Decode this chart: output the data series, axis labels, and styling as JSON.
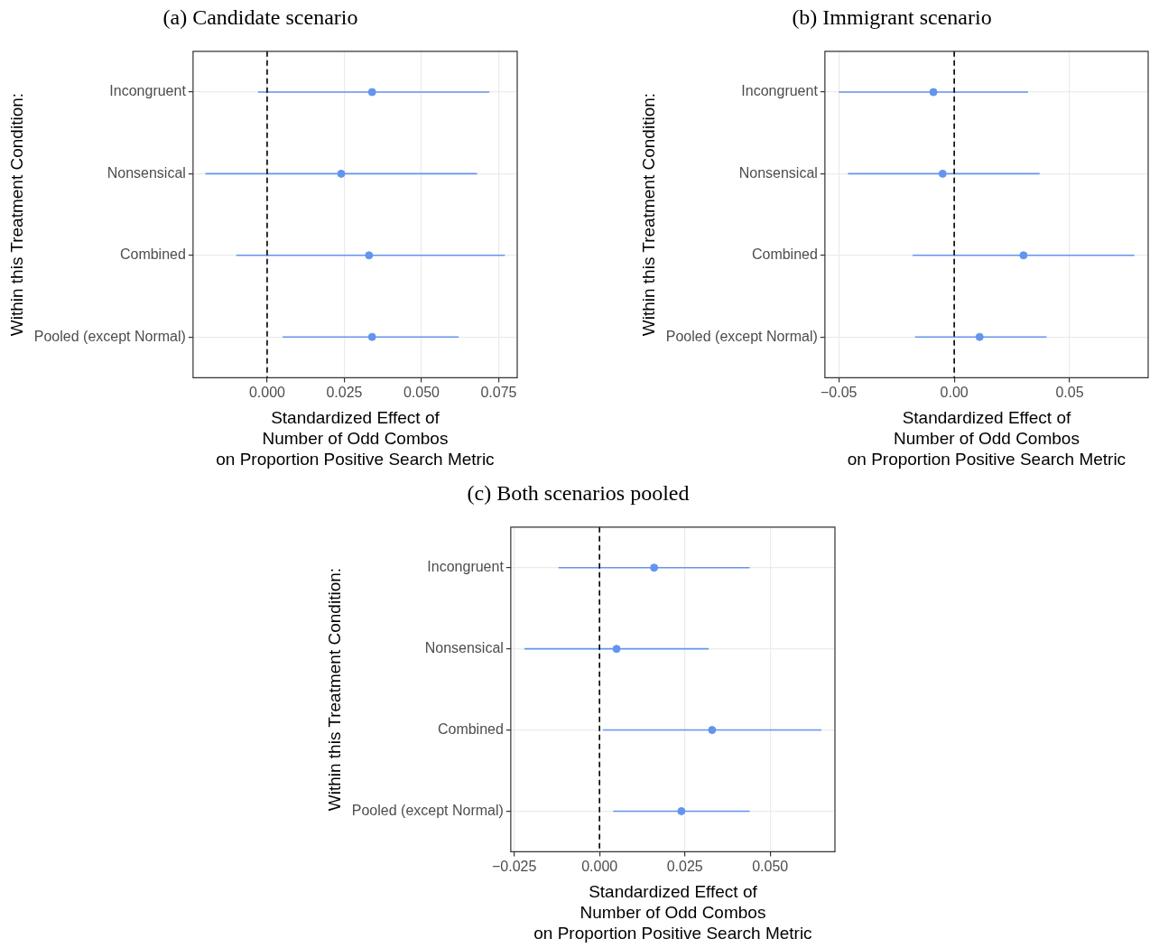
{
  "chart_data": [
    {
      "type": "scatter",
      "orientation": "horizontal",
      "title": "(a) Candidate scenario",
      "xlabel": "Standardized Effect of\nNumber of Odd Combos\non Proportion Positive Search Metric",
      "ylabel": "Within this Treatment Condition:",
      "categories": [
        "Incongruent",
        "Nonsensical",
        "Combined",
        "Pooled (except Normal)"
      ],
      "color": "#6495ed",
      "values": [
        0.034,
        0.024,
        0.033,
        0.034
      ],
      "errors": [
        [
          -0.003,
          0.072
        ],
        [
          -0.02,
          0.068
        ],
        [
          -0.01,
          0.077
        ],
        [
          0.005,
          0.062
        ]
      ],
      "xlim": [
        -0.024,
        0.081
      ],
      "xticks": [
        {
          "value": 0,
          "label": "0.000"
        },
        0.025,
        {
          "value": 0.05,
          "label": "0.050"
        },
        0.075
      ],
      "ref_lines": [
        {
          "axis": "x",
          "value": 0,
          "color": "#000000",
          "line_style": "dashed"
        }
      ],
      "grid": true,
      "marker": "circle"
    },
    {
      "type": "scatter",
      "orientation": "horizontal",
      "title": "(b) Immigrant scenario",
      "xlabel": "Standardized Effect of\nNumber of Odd Combos\non Proportion Positive Search Metric",
      "ylabel": "Within this Treatment Condition:",
      "categories": [
        "Incongruent",
        "Nonsensical",
        "Combined",
        "Pooled (except Normal)"
      ],
      "color": "#6495ed",
      "values": [
        -0.009,
        -0.005,
        0.03,
        0.011
      ],
      "errors": [
        [
          -0.05,
          0.032
        ],
        [
          -0.046,
          0.037
        ],
        [
          -0.018,
          0.078
        ],
        [
          -0.017,
          0.04
        ]
      ],
      "xlim": [
        -0.056,
        0.084
      ],
      "xticks": [
        {
          "value": -0.05,
          "label": "−0.05"
        },
        {
          "value": 0,
          "label": "0.00"
        },
        0.05
      ],
      "ref_lines": [
        {
          "axis": "x",
          "value": 0,
          "color": "#000000",
          "line_style": "dashed"
        }
      ],
      "grid": true,
      "marker": "circle"
    },
    {
      "type": "scatter",
      "orientation": "horizontal",
      "title": "(c) Both scenarios pooled",
      "xlabel": "Standardized Effect of\nNumber of Odd Combos\non Proportion Positive Search Metric",
      "ylabel": "Within this Treatment Condition:",
      "categories": [
        "Incongruent",
        "Nonsensical",
        "Combined",
        "Pooled (except Normal)"
      ],
      "color": "#6495ed",
      "values": [
        0.016,
        0.005,
        0.033,
        0.024
      ],
      "errors": [
        [
          -0.012,
          0.044
        ],
        [
          -0.022,
          0.032
        ],
        [
          0.001,
          0.065
        ],
        [
          0.004,
          0.044
        ]
      ],
      "xlim": [
        -0.026,
        0.069
      ],
      "xticks": [
        {
          "value": -0.025,
          "label": "−0.025"
        },
        {
          "value": 0,
          "label": "0.000"
        },
        0.025,
        {
          "value": 0.05,
          "label": "0.050"
        }
      ],
      "ref_lines": [
        {
          "axis": "x",
          "value": 0,
          "color": "#000000",
          "line_style": "dashed"
        }
      ],
      "grid": true,
      "marker": "circle"
    }
  ]
}
